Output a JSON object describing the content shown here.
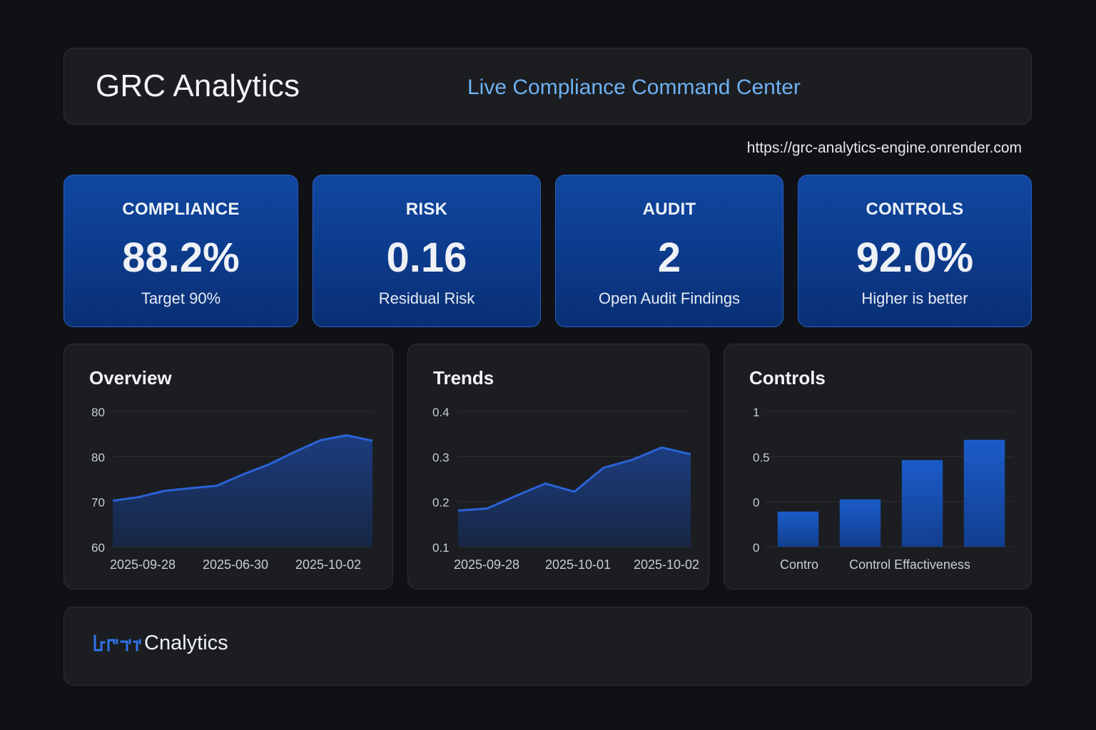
{
  "header": {
    "title": "GRC Analytics",
    "subtitle": "Live Compliance Command Center"
  },
  "url": "https://grc-analytics-engine.onrender.com",
  "kpis": [
    {
      "label": "COMPLIANCE",
      "value": "88.2%",
      "sub": "Target 90%"
    },
    {
      "label": "RISK",
      "value": "0.16",
      "sub": "Residual Risk"
    },
    {
      "label": "AUDIT",
      "value": "2",
      "sub": "Open Audit Findings"
    },
    {
      "label": "CONTROLS",
      "value": "92.0%",
      "sub": "Higher is better"
    }
  ],
  "colors": {
    "accent": "#2f6fe0",
    "line": "#2a63d6",
    "card_gradient_top": "#1047a0",
    "card_gradient_bottom": "#0a2f74",
    "subtitle": "#6fb1f2"
  },
  "chart_data": [
    {
      "type": "area",
      "title": "Overview",
      "y_tick_labels": [
        "80",
        "80",
        "70",
        "60"
      ],
      "x_tick_labels": [
        "2025-09-28",
        "2025-06-30",
        "2025-10-02"
      ],
      "ylim": [
        60,
        90
      ],
      "grid": true,
      "values": [
        70.2,
        71.0,
        72.4,
        73.0,
        73.5,
        76.0,
        78.2,
        81.0,
        83.6,
        84.7,
        83.5
      ]
    },
    {
      "type": "area",
      "title": "Trends",
      "y_tick_labels": [
        "0.4",
        "0.3",
        "0.2",
        "0.1"
      ],
      "x_tick_labels": [
        "2025-09-28",
        "2025-10-01",
        "2025-10-02"
      ],
      "ylim": [
        0.1,
        0.4
      ],
      "grid": true,
      "values": [
        0.18,
        0.185,
        0.213,
        0.24,
        0.222,
        0.275,
        0.293,
        0.32,
        0.305
      ]
    },
    {
      "type": "bar",
      "title": "Controls",
      "y_tick_labels": [
        "1",
        "0.5",
        "0",
        "0"
      ],
      "x_tick_labels": [
        "Contro",
        "Control Effactiveness"
      ],
      "ylim": [
        0,
        1
      ],
      "grid": true,
      "values": [
        0.26,
        0.35,
        0.64,
        0.79
      ]
    }
  ],
  "footer": {
    "brand_text": "Cnalytics",
    "brand_icon": "grc-logo-icon"
  }
}
